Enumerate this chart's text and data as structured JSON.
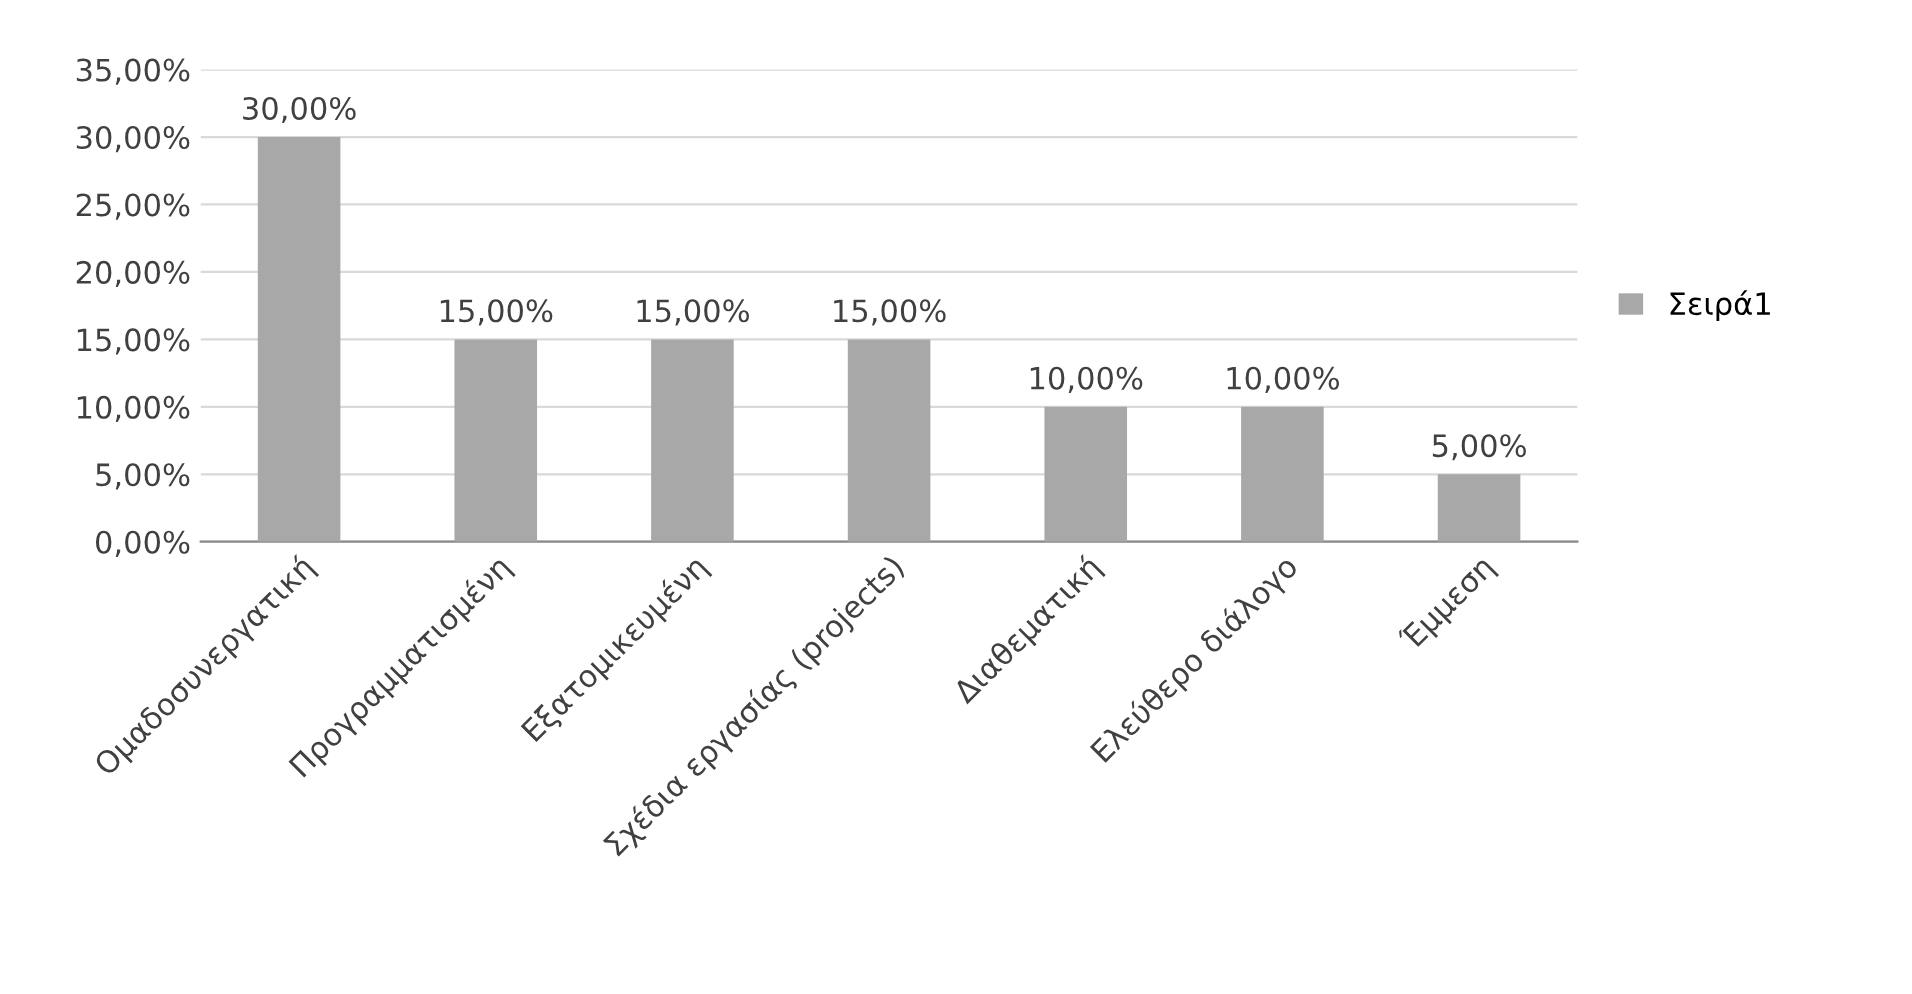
{
  "chart_data": {
    "type": "bar",
    "categories": [
      "Ομαδοσυνεργατική",
      "Προγραμματισμένη",
      "Εξατομικευμένη",
      "Σχέδια εργασίας (projects)",
      "Διαθεματική",
      "Ελεύθερο διάλογο",
      "Έμμεση"
    ],
    "series": [
      {
        "name": "Σειρά1",
        "color": "#a8a8a8",
        "values": [
          30,
          15,
          15,
          15,
          10,
          10,
          5
        ],
        "value_labels": [
          "30,00%",
          "15,00%",
          "15,00%",
          "15,00%",
          "10,00%",
          "10,00%",
          "5,00%"
        ]
      }
    ],
    "ylim": [
      0,
      35
    ],
    "yticks": [
      {
        "value": 0,
        "label": "0,00%"
      },
      {
        "value": 5,
        "label": "5,00%"
      },
      {
        "value": 10,
        "label": "10,00%"
      },
      {
        "value": 15,
        "label": "15,00%"
      },
      {
        "value": 20,
        "label": "20,00%"
      },
      {
        "value": 25,
        "label": "25,00%"
      },
      {
        "value": 30,
        "label": "30,00%"
      },
      {
        "value": 35,
        "label": "35,00%"
      }
    ],
    "grid": "y",
    "legend": "right"
  }
}
